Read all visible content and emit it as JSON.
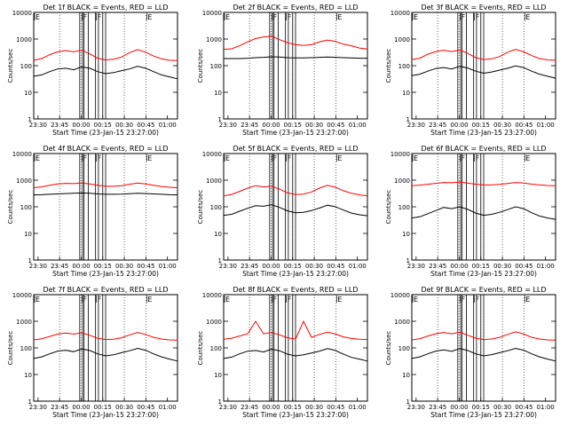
{
  "chart_data": [
    {
      "type": "line",
      "title": "Det 1f BLACK = Events, RED = LLD",
      "ylabel": "Counts/sec",
      "xlabel": "Start Time (23-Jan-15 23:27:00)",
      "x_ticks": [
        "23:30",
        "23:45",
        "00:00",
        "00:15",
        "00:30",
        "00:45",
        "01:00"
      ],
      "y_scale": "log",
      "ylim": [
        1,
        10000
      ],
      "y_ticks": [
        "1",
        "10",
        "100",
        "1000",
        "10000"
      ],
      "grid": "dotted vertical at 23:45, 00:00, 00:15, 00:30, 00:45",
      "markers": [
        {
          "label": "E",
          "time": "23:27"
        },
        {
          "label": "F",
          "time": "00:00"
        },
        {
          "label": "F",
          "time": "00:10"
        },
        {
          "label": "E",
          "time": "00:45"
        }
      ],
      "shaded_intervals": [
        [
          "23:59",
          "00:01"
        ],
        [
          "00:02",
          "00:05"
        ],
        [
          "00:10",
          "00:12"
        ],
        [
          "00:15",
          "00:17"
        ]
      ],
      "series": [
        {
          "name": "Events",
          "color": "#000000",
          "values": [
            40,
            45,
            60,
            75,
            80,
            70,
            90,
            80,
            60,
            50,
            55,
            65,
            75,
            95,
            80,
            60,
            45,
            38,
            32
          ]
        },
        {
          "name": "LLD",
          "color": "#ff0000",
          "values": [
            160,
            185,
            260,
            330,
            370,
            330,
            380,
            280,
            190,
            165,
            175,
            210,
            310,
            400,
            320,
            230,
            180,
            160,
            155
          ]
        }
      ]
    },
    {
      "type": "line",
      "title": "Det 2f BLACK = Events, RED = LLD",
      "ylabel": "Counts/sec",
      "xlabel": "Start Time (23-Jan-15 23:27:00)",
      "x_ticks": [
        "23:30",
        "23:45",
        "00:00",
        "00:15",
        "00:30",
        "00:45",
        "01:00"
      ],
      "y_scale": "log",
      "ylim": [
        1,
        10000
      ],
      "y_ticks": [
        "1",
        "10",
        "100",
        "1000",
        "10000"
      ],
      "grid": "dotted vertical at 23:45, 00:00, 00:15, 00:30, 00:45",
      "markers": [
        {
          "label": "E",
          "time": "23:27"
        },
        {
          "label": "F",
          "time": "00:00"
        },
        {
          "label": "F",
          "time": "00:10"
        },
        {
          "label": "E",
          "time": "00:45"
        }
      ],
      "shaded_intervals": [
        [
          "23:59",
          "00:01"
        ],
        [
          "00:02",
          "00:05"
        ],
        [
          "00:10",
          "00:12"
        ],
        [
          "00:15",
          "00:17"
        ]
      ],
      "series": [
        {
          "name": "Events",
          "color": "#000000",
          "values": [
            185,
            185,
            185,
            190,
            200,
            205,
            215,
            210,
            200,
            195,
            195,
            200,
            205,
            210,
            205,
            200,
            195,
            190,
            190
          ]
        },
        {
          "name": "LLD",
          "color": "#ff0000",
          "values": [
            410,
            430,
            560,
            780,
            1050,
            1200,
            1280,
            950,
            730,
            610,
            580,
            610,
            790,
            920,
            820,
            640,
            560,
            460,
            420
          ]
        }
      ]
    },
    {
      "type": "line",
      "title": "Det 3f BLACK = Events, RED = LLD",
      "ylabel": "Counts/sec",
      "xlabel": "Start Time (23-Jan-15 23:27:00)",
      "x_ticks": [
        "23:30",
        "23:45",
        "00:00",
        "00:15",
        "00:30",
        "00:45",
        "01:00"
      ],
      "y_scale": "log",
      "ylim": [
        1,
        10000
      ],
      "y_ticks": [
        "1",
        "10",
        "100",
        "1000",
        "10000"
      ],
      "grid": "dotted vertical at 23:45, 00:00, 00:15, 00:30, 00:45",
      "markers": [
        {
          "label": "E",
          "time": "23:27"
        },
        {
          "label": "F",
          "time": "00:00"
        },
        {
          "label": "F",
          "time": "00:10"
        },
        {
          "label": "E",
          "time": "00:45"
        }
      ],
      "shaded_intervals": [
        [
          "23:59",
          "00:01"
        ],
        [
          "00:02",
          "00:05"
        ],
        [
          "00:10",
          "00:12"
        ],
        [
          "00:15",
          "00:17"
        ]
      ],
      "series": [
        {
          "name": "Events",
          "color": "#000000",
          "values": [
            42,
            48,
            62,
            78,
            85,
            75,
            95,
            82,
            62,
            52,
            58,
            68,
            80,
            98,
            85,
            62,
            48,
            40,
            34
          ]
        },
        {
          "name": "LLD",
          "color": "#ff0000",
          "values": [
            170,
            190,
            270,
            340,
            380,
            340,
            390,
            290,
            200,
            170,
            180,
            220,
            320,
            410,
            330,
            240,
            185,
            165,
            160
          ]
        }
      ]
    },
    {
      "type": "line",
      "title": "Det 4f BLACK = Events, RED = LLD",
      "ylabel": "Counts/sec",
      "xlabel": "Start Time (23-Jan-15 23:27:00)",
      "x_ticks": [
        "23:30",
        "23:45",
        "00:00",
        "00:15",
        "00:30",
        "00:45",
        "01:00"
      ],
      "y_scale": "log",
      "ylim": [
        1,
        10000
      ],
      "y_ticks": [
        "1",
        "10",
        "100",
        "1000",
        "10000"
      ],
      "grid": "dotted vertical at 23:45, 00:00, 00:15, 00:30, 00:45",
      "markers": [
        {
          "label": "E",
          "time": "23:27"
        },
        {
          "label": "F",
          "time": "00:00"
        },
        {
          "label": "F",
          "time": "00:10"
        },
        {
          "label": "E",
          "time": "00:45"
        }
      ],
      "shaded_intervals": [
        [
          "23:59",
          "00:01"
        ],
        [
          "00:02",
          "00:05"
        ],
        [
          "00:10",
          "00:12"
        ],
        [
          "00:15",
          "00:17"
        ]
      ],
      "series": [
        {
          "name": "Events",
          "color": "#000000",
          "values": [
            280,
            285,
            295,
            305,
            315,
            320,
            330,
            320,
            305,
            295,
            295,
            300,
            310,
            320,
            315,
            305,
            295,
            285,
            280
          ]
        },
        {
          "name": "LLD",
          "color": "#ff0000",
          "values": [
            520,
            560,
            640,
            720,
            760,
            740,
            790,
            720,
            640,
            590,
            590,
            620,
            700,
            780,
            720,
            640,
            580,
            540,
            520
          ]
        }
      ]
    },
    {
      "type": "line",
      "title": "Det 5f BLACK = Events, RED = LLD",
      "ylabel": "Counts/sec",
      "xlabel": "Start Time (23-Jan-15 23:27:00)",
      "x_ticks": [
        "23:30",
        "23:45",
        "00:00",
        "00:15",
        "00:30",
        "00:45",
        "01:00"
      ],
      "y_scale": "log",
      "ylim": [
        1,
        10000
      ],
      "y_ticks": [
        "1",
        "10",
        "100",
        "1000",
        "10000"
      ],
      "grid": "dotted vertical at 23:45, 00:00, 00:15, 00:30, 00:45",
      "markers": [
        {
          "label": "E",
          "time": "23:27"
        },
        {
          "label": "F",
          "time": "00:00"
        },
        {
          "label": "F",
          "time": "00:10"
        },
        {
          "label": "E",
          "time": "00:45"
        }
      ],
      "shaded_intervals": [
        [
          "23:59",
          "00:01"
        ],
        [
          "00:02",
          "00:05"
        ],
        [
          "00:10",
          "00:12"
        ],
        [
          "00:15",
          "00:17"
        ]
      ],
      "series": [
        {
          "name": "Events",
          "color": "#000000",
          "values": [
            48,
            52,
            68,
            88,
            110,
            105,
            120,
            95,
            70,
            60,
            62,
            72,
            90,
            115,
            100,
            75,
            58,
            50,
            46
          ]
        },
        {
          "name": "LLD",
          "color": "#ff0000",
          "values": [
            260,
            290,
            380,
            500,
            620,
            560,
            600,
            460,
            330,
            290,
            300,
            360,
            500,
            640,
            540,
            400,
            320,
            280,
            260
          ]
        }
      ]
    },
    {
      "type": "line",
      "title": "Det 6f BLACK = Events, RED = LLD",
      "ylabel": "Counts/sec",
      "xlabel": "Start Time (23-Jan-15 23:27:00)",
      "x_ticks": [
        "23:30",
        "23:45",
        "00:00",
        "00:15",
        "00:30",
        "00:45",
        "01:00"
      ],
      "y_scale": "log",
      "ylim": [
        1,
        10000
      ],
      "y_ticks": [
        "1",
        "10",
        "100",
        "1000",
        "10000"
      ],
      "grid": "dotted vertical at 23:45, 00:00, 00:15, 00:30, 00:45",
      "markers": [
        {
          "label": "E",
          "time": "23:27"
        },
        {
          "label": "F",
          "time": "00:00"
        },
        {
          "label": "F",
          "time": "00:10"
        },
        {
          "label": "E",
          "time": "00:45"
        }
      ],
      "shaded_intervals": [
        [
          "23:59",
          "00:01"
        ],
        [
          "00:02",
          "00:05"
        ],
        [
          "00:10",
          "00:12"
        ],
        [
          "00:15",
          "00:17"
        ]
      ],
      "series": [
        {
          "name": "Events",
          "color": "#000000",
          "values": [
            38,
            42,
            55,
            72,
            95,
            85,
            100,
            80,
            58,
            48,
            52,
            62,
            78,
            100,
            85,
            60,
            45,
            38,
            34
          ]
        },
        {
          "name": "LLD",
          "color": "#ff0000",
          "values": [
            620,
            650,
            700,
            760,
            820,
            800,
            850,
            780,
            700,
            660,
            660,
            690,
            750,
            820,
            780,
            710,
            660,
            630,
            620
          ]
        }
      ]
    },
    {
      "type": "line",
      "title": "Det 7f BLACK = Events, RED = LLD",
      "ylabel": "Counts/sec",
      "xlabel": "Start Time (23-Jan-15 23:27:00)",
      "x_ticks": [
        "23:30",
        "23:45",
        "00:00",
        "00:15",
        "00:30",
        "00:45",
        "01:00"
      ],
      "y_scale": "log",
      "ylim": [
        1,
        10000
      ],
      "y_ticks": [
        "1",
        "10",
        "100",
        "1000",
        "10000"
      ],
      "grid": "dotted vertical at 23:45, 00:00, 00:15, 00:30, 00:45",
      "markers": [
        {
          "label": "E",
          "time": "23:27"
        },
        {
          "label": "F",
          "time": "00:00"
        },
        {
          "label": "F",
          "time": "00:10"
        },
        {
          "label": "E",
          "time": "00:45"
        }
      ],
      "shaded_intervals": [
        [
          "23:59",
          "00:01"
        ],
        [
          "00:02",
          "00:05"
        ],
        [
          "00:10",
          "00:12"
        ],
        [
          "00:15",
          "00:17"
        ]
      ],
      "series": [
        {
          "name": "Events",
          "color": "#000000",
          "values": [
            40,
            46,
            60,
            76,
            82,
            72,
            92,
            80,
            60,
            50,
            55,
            66,
            78,
            96,
            82,
            60,
            46,
            38,
            32
          ]
        },
        {
          "name": "LLD",
          "color": "#ff0000",
          "values": [
            200,
            220,
            270,
            330,
            360,
            330,
            370,
            300,
            230,
            205,
            210,
            240,
            310,
            380,
            320,
            250,
            215,
            200,
            195
          ]
        }
      ]
    },
    {
      "type": "line",
      "title": "Det 8f BLACK = Events, RED = LLD",
      "ylabel": "Counts/sec",
      "xlabel": "Start Time (23-Jan-15 23:27:00)",
      "x_ticks": [
        "23:30",
        "23:45",
        "00:00",
        "00:15",
        "00:30",
        "00:45",
        "01:00"
      ],
      "y_scale": "log",
      "ylim": [
        1,
        10000
      ],
      "y_ticks": [
        "1",
        "10",
        "100",
        "1000",
        "10000"
      ],
      "grid": "dotted vertical at 23:45, 00:00, 00:15, 00:30, 00:45",
      "markers": [
        {
          "label": "E",
          "time": "23:27"
        },
        {
          "label": "F",
          "time": "00:00"
        },
        {
          "label": "F",
          "time": "00:10"
        },
        {
          "label": "E",
          "time": "00:45"
        }
      ],
      "shaded_intervals": [
        [
          "23:59",
          "00:01"
        ],
        [
          "00:02",
          "00:05"
        ],
        [
          "00:10",
          "00:12"
        ],
        [
          "00:15",
          "00:17"
        ]
      ],
      "series": [
        {
          "name": "Events",
          "color": "#000000",
          "values": [
            40,
            45,
            60,
            75,
            80,
            70,
            90,
            78,
            58,
            50,
            55,
            64,
            76,
            94,
            80,
            58,
            44,
            38,
            32
          ]
        },
        {
          "name": "LLD",
          "color": "#ff0000",
          "values": [
            210,
            230,
            280,
            340,
            1000,
            340,
            380,
            310,
            240,
            215,
            1000,
            250,
            320,
            390,
            330,
            260,
            225,
            210,
            205
          ]
        }
      ]
    },
    {
      "type": "line",
      "title": "Det 9f BLACK = Events, RED = LLD",
      "ylabel": "Counts/sec",
      "xlabel": "Start Time (23-Jan-15 23:27:00)",
      "x_ticks": [
        "23:30",
        "23:45",
        "00:00",
        "00:15",
        "00:30",
        "00:45",
        "01:00"
      ],
      "y_scale": "log",
      "ylim": [
        1,
        10000
      ],
      "y_ticks": [
        "1",
        "10",
        "100",
        "1000",
        "10000"
      ],
      "grid": "dotted vertical at 23:45, 00:00, 00:15, 00:30, 00:45",
      "markers": [
        {
          "label": "E",
          "time": "23:27"
        },
        {
          "label": "F",
          "time": "00:00"
        },
        {
          "label": "F",
          "time": "00:10"
        },
        {
          "label": "E",
          "time": "00:45"
        }
      ],
      "shaded_intervals": [
        [
          "23:59",
          "00:01"
        ],
        [
          "00:02",
          "00:05"
        ],
        [
          "00:10",
          "00:12"
        ],
        [
          "00:15",
          "00:17"
        ]
      ],
      "series": [
        {
          "name": "Events",
          "color": "#000000",
          "values": [
            40,
            46,
            60,
            76,
            84,
            74,
            94,
            80,
            60,
            50,
            56,
            66,
            78,
            96,
            82,
            60,
            46,
            38,
            32
          ]
        },
        {
          "name": "LLD",
          "color": "#ff0000",
          "values": [
            200,
            220,
            280,
            340,
            380,
            340,
            390,
            300,
            230,
            205,
            215,
            250,
            320,
            400,
            330,
            250,
            215,
            200,
            195
          ]
        }
      ]
    }
  ]
}
